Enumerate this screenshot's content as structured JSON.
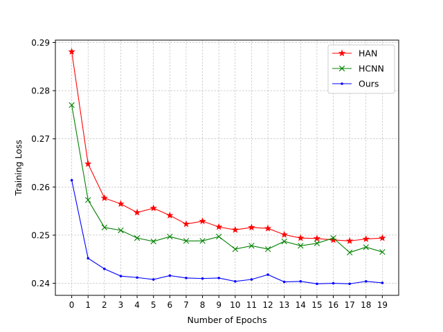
{
  "chart_data": {
    "type": "line",
    "x": [
      0,
      1,
      2,
      3,
      4,
      5,
      6,
      7,
      8,
      9,
      10,
      11,
      12,
      13,
      14,
      15,
      16,
      17,
      18,
      19
    ],
    "series": [
      {
        "name": "HAN",
        "color": "#ff0000",
        "marker": "star",
        "values": [
          0.2881,
          0.2648,
          0.2577,
          0.2565,
          0.2547,
          0.2556,
          0.2541,
          0.2523,
          0.2529,
          0.2517,
          0.2511,
          0.2516,
          0.2514,
          0.2501,
          0.2494,
          0.2493,
          0.249,
          0.2488,
          0.2492,
          0.2494
        ]
      },
      {
        "name": "HCNN",
        "color": "#008000",
        "marker": "x",
        "values": [
          0.277,
          0.2573,
          0.2516,
          0.251,
          0.2494,
          0.2487,
          0.2497,
          0.2488,
          0.2488,
          0.2497,
          0.2471,
          0.2478,
          0.2471,
          0.2487,
          0.2478,
          0.2483,
          0.2494,
          0.2464,
          0.2475,
          0.2465
        ]
      },
      {
        "name": "Ours",
        "color": "#0000ff",
        "marker": "dot",
        "values": [
          0.2614,
          0.2452,
          0.243,
          0.2415,
          0.2412,
          0.2408,
          0.2416,
          0.2411,
          0.241,
          0.2411,
          0.2404,
          0.2408,
          0.2418,
          0.2403,
          0.2404,
          0.2399,
          0.24,
          0.2399,
          0.2404,
          0.2401
        ]
      }
    ],
    "xlabel": "Number of Epochs",
    "ylabel": "Training Loss",
    "xlim": [
      -1.0,
      20.0
    ],
    "ylim": [
      0.2375,
      0.2905
    ],
    "xticks": [
      0,
      1,
      2,
      3,
      4,
      5,
      6,
      7,
      8,
      9,
      10,
      11,
      12,
      13,
      14,
      15,
      16,
      17,
      18,
      19
    ],
    "yticks": [
      0.24,
      0.25,
      0.26,
      0.27,
      0.28,
      0.29
    ],
    "ytick_labels": [
      "0.24",
      "0.25",
      "0.26",
      "0.27",
      "0.28",
      "0.29"
    ],
    "grid": true,
    "legend_position": "top-right"
  }
}
